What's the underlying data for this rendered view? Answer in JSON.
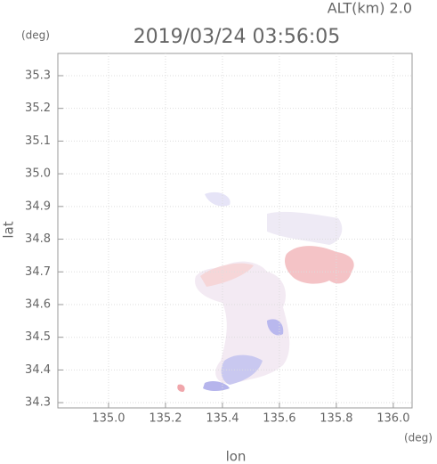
{
  "chart_data": {
    "type": "map",
    "title": "2019/03/24 03:56:05",
    "subtitle": "ALT(km) 2.0",
    "x_label": "lon",
    "y_label": "lat",
    "x_unit": "(deg)",
    "y_unit": "(deg)",
    "xlim": [
      134.822,
      136.066
    ],
    "ylim": [
      34.284,
      35.368
    ],
    "xticks": [
      {
        "value": 135.0,
        "label": "135.0"
      },
      135.2,
      135.4,
      135.6,
      135.8,
      {
        "value": 136.0,
        "label": "136.0"
      }
    ],
    "yticks": [
      34.3,
      34.4,
      34.5,
      34.6,
      34.7,
      34.8,
      34.9,
      {
        "value": 35.0,
        "label": "35.0"
      },
      35.1,
      35.2,
      35.3
    ],
    "grid": true
  }
}
